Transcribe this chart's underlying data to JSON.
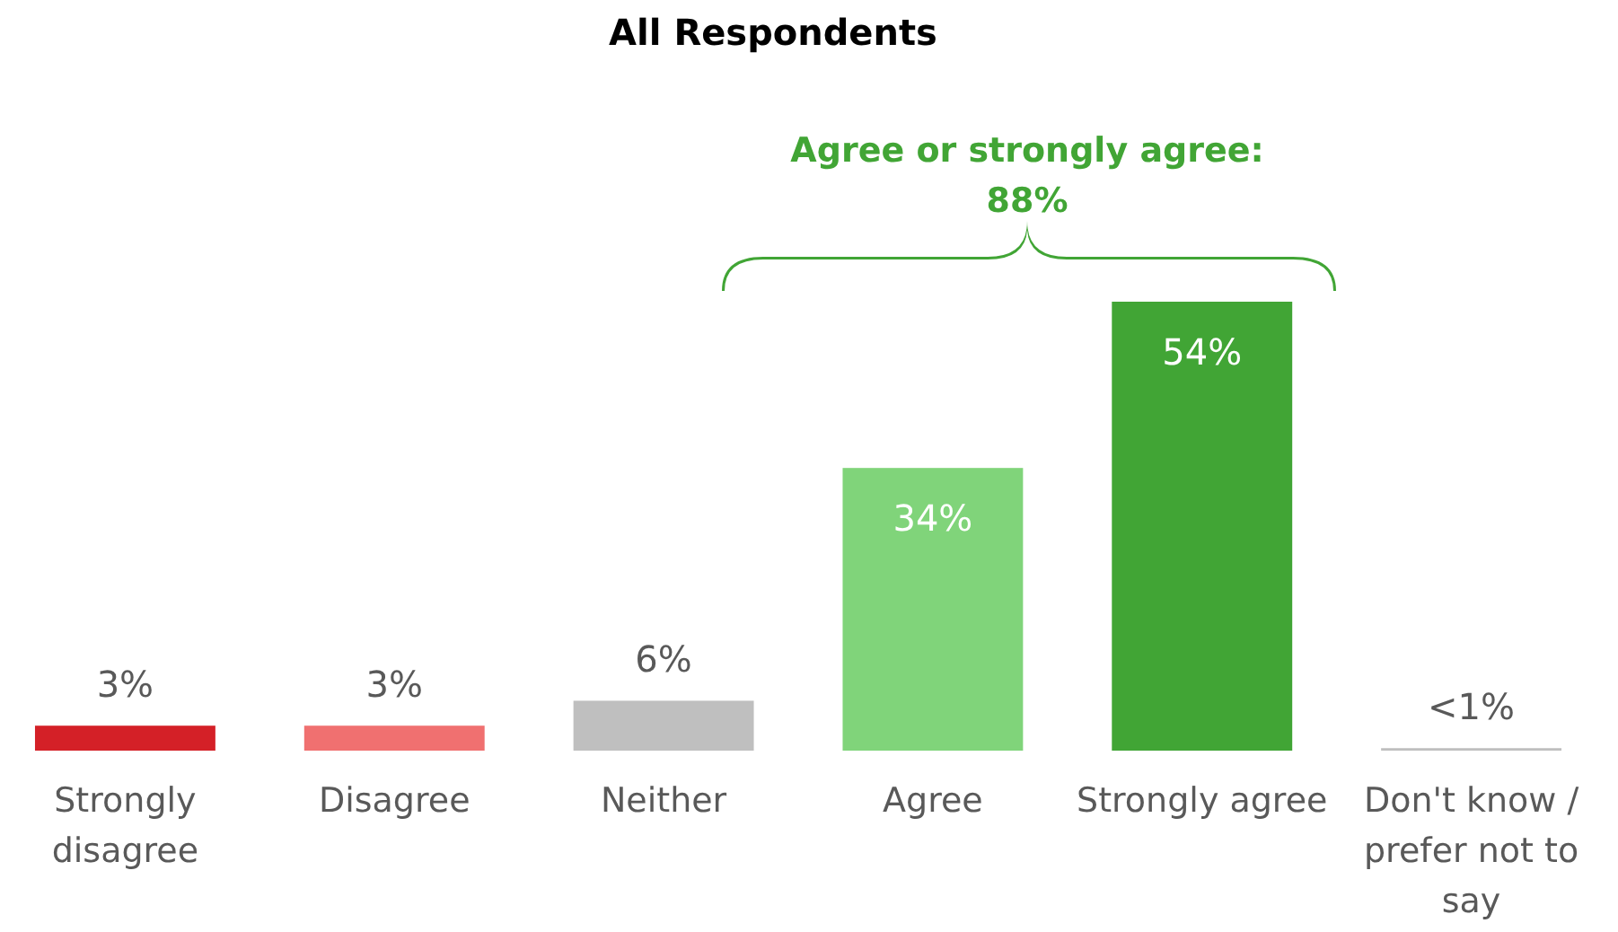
{
  "chart_data": {
    "type": "bar",
    "title": "All Respondents",
    "categories": [
      "Strongly disagree",
      "Disagree",
      "Neither",
      "Agree",
      "Strongly agree",
      "Don't know / prefer not to say"
    ],
    "values": [
      3,
      3,
      6,
      34,
      54,
      0.3
    ],
    "colors": [
      "#d42027",
      "#f07070",
      "#bfbfbf",
      "#80d47a",
      "#41a535",
      "#bfbfbf"
    ],
    "value_labels": [
      "3%",
      "3%",
      "6%",
      "34%",
      "54%",
      "<1%"
    ],
    "annotations": [
      "Agree or strongly agree: 88%"
    ]
  }
}
